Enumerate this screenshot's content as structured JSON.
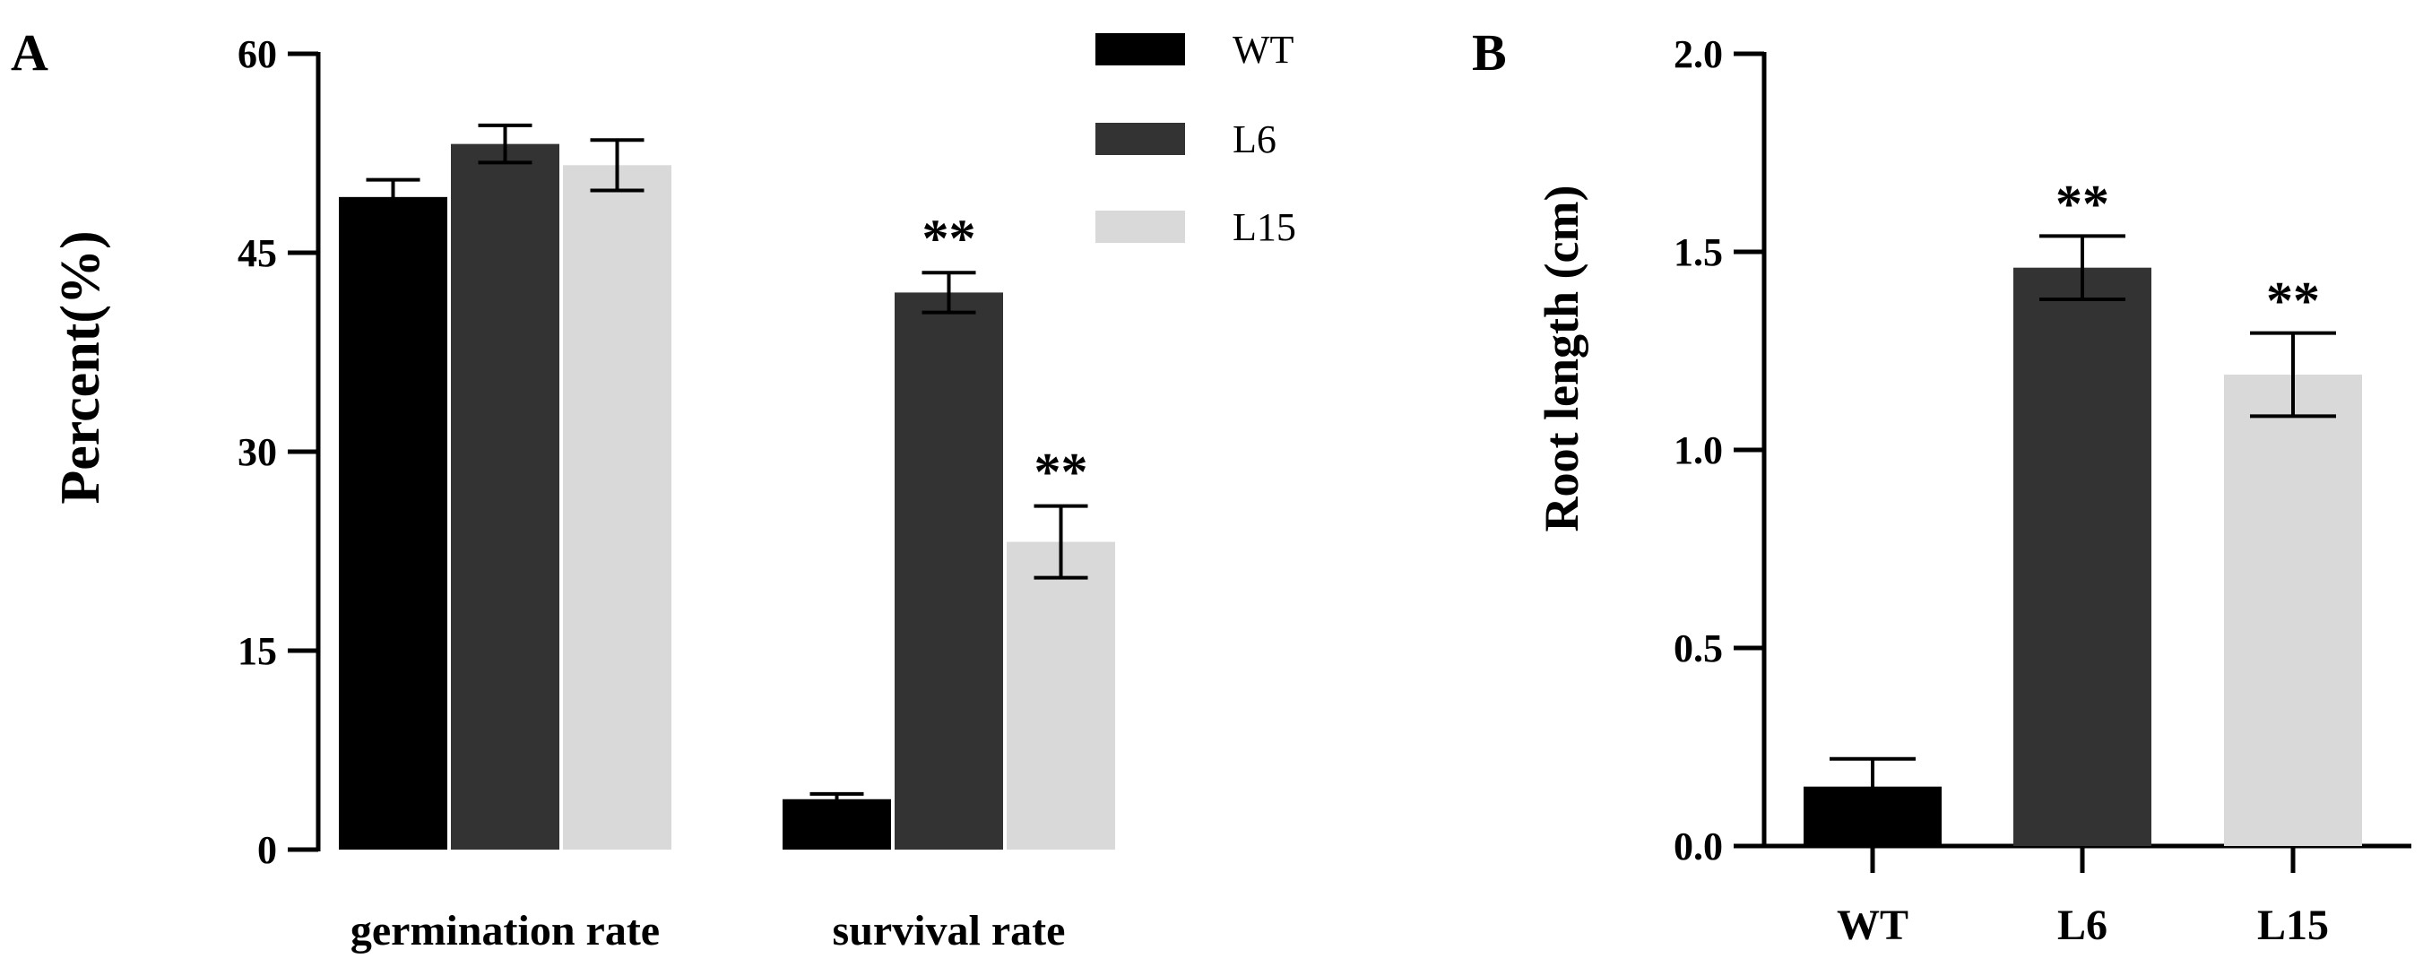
{
  "chart_data": [
    {
      "panel": "A",
      "type": "bar",
      "title": "",
      "xlabel": "",
      "ylabel": "Percent(%)",
      "ylim": [
        0,
        60
      ],
      "yticks": [
        "0",
        "15",
        "30",
        "45",
        "60"
      ],
      "categories": [
        "germination rate",
        "survival rate"
      ],
      "series": [
        {
          "name": "WT",
          "color": "#000000",
          "values": [
            49.2,
            3.8
          ],
          "errors": [
            1.3,
            0.4
          ],
          "annotations": [
            "",
            ""
          ]
        },
        {
          "name": "L6",
          "color": "#333333",
          "values": [
            53.2,
            42.0
          ],
          "errors": [
            1.4,
            1.5
          ],
          "annotations": [
            "",
            "**"
          ]
        },
        {
          "name": "L15",
          "color": "#d9d9d9",
          "values": [
            51.6,
            23.2
          ],
          "errors": [
            1.9,
            2.7
          ],
          "annotations": [
            "",
            "**"
          ]
        }
      ],
      "legend": [
        "WT",
        "L6",
        "L15"
      ],
      "legend_position": "top-right"
    },
    {
      "panel": "B",
      "type": "bar",
      "title": "",
      "xlabel": "",
      "ylabel": "Root length (cm)",
      "ylim": [
        0,
        2.0
      ],
      "yticks": [
        "0.0",
        "0.5",
        "1.0",
        "1.5",
        "2.0"
      ],
      "categories": [
        "WT",
        "L6",
        "L15"
      ],
      "colors": [
        "#000000",
        "#333333",
        "#d9d9d9"
      ],
      "values": [
        0.15,
        1.46,
        1.19
      ],
      "errors": [
        0.07,
        0.08,
        0.105
      ],
      "annotations": [
        "",
        "**",
        "**"
      ]
    }
  ]
}
